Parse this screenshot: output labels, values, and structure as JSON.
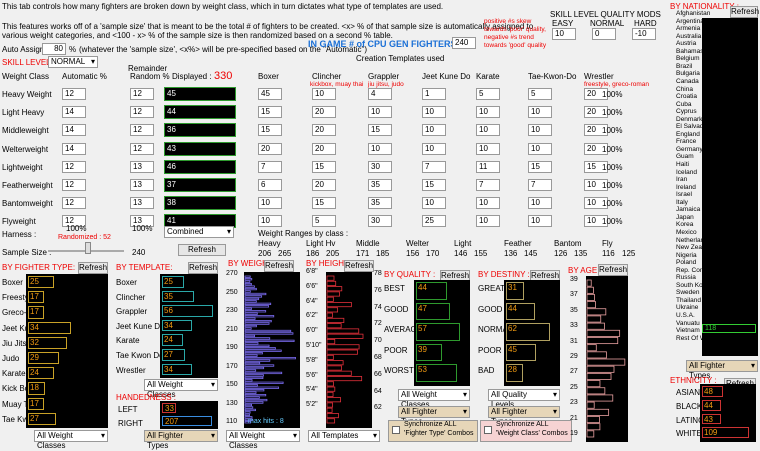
{
  "header": {
    "line1": "This tab controls how many fighters are broken down by weight class,  which in turn dictates what type of templates are used.",
    "line2": "This features works off of a 'sample size' that is meant to be the total # of fighters to be created.  <x> % of that sample size is automatically assigned to",
    "line3": "various weight categories, and <100 - x> % of the sample size is then randomized based on a second % table.",
    "auto_assign_label": "Auto Assign",
    "auto_assign_value": "80",
    "auto_assign_pct": "%",
    "auto_assign_note": "(whatever the 'sample size', <x%> will be pre-specified based on the \"Automatic\")",
    "in_game_label": "IN GAME # of CPU GEN FIGHTERS :",
    "in_game_value": "240",
    "skill_level_label": "SKILL LEVEL:",
    "skill_level_value": "NORMAL",
    "creation_templates": "Creation Templates used"
  },
  "skill_mods": {
    "title": "SKILL LEVEL QUALITY MODS",
    "easy": "EASY",
    "normal": "NORMAL",
    "hard": "HARD",
    "easy_val": "10",
    "normal_val": "0",
    "hard_val": "-10",
    "note1": "positive #s skew",
    "note2": "towards 'poor' quality,",
    "note3": "negative #s trend",
    "note4": "towards 'good' quality"
  },
  "weight_table": {
    "headers": {
      "weight_class": "Weight Class",
      "automatic": "Automatic %",
      "remainder": "Remainder",
      "random": "Random %",
      "displayed": "Displayed :",
      "displayed_val": "330",
      "boxer": "Boxer",
      "clincher": "Clincher",
      "grappler": "Grappler",
      "jkd": "Jeet Kune Do",
      "karate": "Karate",
      "tkd": "Tae-Kwon-Do",
      "wrestler": "Wrestler"
    },
    "subnotes": {
      "clincher": "kickbox, muay thai",
      "grappler": "jiu jitsu, judo",
      "wrestler": "freestyle, greco-roman"
    },
    "rows": [
      {
        "name": "Heavy Weight",
        "auto": "12",
        "rand": "12",
        "disp": "45",
        "boxer": "45",
        "clincher": "10",
        "grappler": "4",
        "jkd": "1",
        "karate": "5",
        "tkd": "5",
        "wrestler": "20",
        "wpct": "100%"
      },
      {
        "name": "Light Heavy",
        "auto": "14",
        "rand": "12",
        "disp": "44",
        "boxer": "15",
        "clincher": "20",
        "grappler": "10",
        "jkd": "10",
        "karate": "10",
        "tkd": "10",
        "wrestler": "20",
        "wpct": "100%"
      },
      {
        "name": "Middleweight",
        "auto": "14",
        "rand": "12",
        "disp": "36",
        "boxer": "15",
        "clincher": "20",
        "grappler": "15",
        "jkd": "10",
        "karate": "10",
        "tkd": "10",
        "wrestler": "20",
        "wpct": "100%"
      },
      {
        "name": "Welterweight",
        "auto": "14",
        "rand": "12",
        "disp": "43",
        "boxer": "20",
        "clincher": "20",
        "grappler": "10",
        "jkd": "10",
        "karate": "10",
        "tkd": "10",
        "wrestler": "20",
        "wpct": "100%"
      },
      {
        "name": "Lightweight",
        "auto": "12",
        "rand": "13",
        "disp": "46",
        "boxer": "7",
        "clincher": "15",
        "grappler": "30",
        "jkd": "7",
        "karate": "11",
        "tkd": "15",
        "wrestler": "15",
        "wpct": "100%"
      },
      {
        "name": "Featherweight",
        "auto": "12",
        "rand": "13",
        "disp": "37",
        "boxer": "6",
        "clincher": "20",
        "grappler": "35",
        "jkd": "15",
        "karate": "7",
        "tkd": "7",
        "wrestler": "10",
        "wpct": "100%"
      },
      {
        "name": "Bantomweight",
        "auto": "12",
        "rand": "13",
        "disp": "38",
        "boxer": "10",
        "clincher": "15",
        "grappler": "35",
        "jkd": "10",
        "karate": "10",
        "tkd": "10",
        "wrestler": "10",
        "wpct": "100%"
      },
      {
        "name": "Flyweight",
        "auto": "12",
        "rand": "13",
        "disp": "41",
        "boxer": "10",
        "clincher": "5",
        "grappler": "30",
        "jkd": "25",
        "karate": "10",
        "tkd": "10",
        "wrestler": "10",
        "wpct": "100%"
      }
    ],
    "auto_total": "100%",
    "rand_total": "100%",
    "combined": "Combined"
  },
  "harness": {
    "label": "Harness :",
    "randomized": "Randomized : 52",
    "sample_label": "Sample Size :",
    "sample_value": "240",
    "refresh": "Refresh"
  },
  "weight_ranges": {
    "title": "Weight Ranges by class :",
    "classes": [
      {
        "name": "Heavy",
        "lo": "206",
        "hi": "265"
      },
      {
        "name": "Light Hv",
        "lo": "186",
        "hi": "205"
      },
      {
        "name": "Middle",
        "lo": "171",
        "hi": "185"
      },
      {
        "name": "Welter",
        "lo": "156",
        "hi": "170"
      },
      {
        "name": "Light",
        "lo": "146",
        "hi": "155"
      },
      {
        "name": "Feather",
        "lo": "136",
        "hi": "145"
      },
      {
        "name": "Bantom",
        "lo": "126",
        "hi": "135"
      },
      {
        "name": "Fly",
        "lo": "116",
        "hi": "125"
      }
    ]
  },
  "by_fighter_type": {
    "title": "BY FIGHTER TYPE:",
    "refresh": "Refresh",
    "items": [
      {
        "label": "Boxer",
        "val": "25",
        "frac": 0.33
      },
      {
        "label": "Freestyle (Wr)",
        "val": "17",
        "frac": 0.2
      },
      {
        "label": "Greco-Roman (Wr)",
        "val": "17",
        "frac": 0.2
      },
      {
        "label": "Jeet Kune Do",
        "val": "34",
        "frac": 0.55
      },
      {
        "label": "Jiu Jitsu",
        "val": "32",
        "frac": 0.5
      },
      {
        "label": "Judo",
        "val": "29",
        "frac": 0.4
      },
      {
        "label": "Karate",
        "val": "24",
        "frac": 0.33
      },
      {
        "label": "Kick Boxer",
        "val": "18",
        "frac": 0.22
      },
      {
        "label": "Muay Thai",
        "val": "17",
        "frac": 0.2
      },
      {
        "label": "Tae Kwon Do",
        "val": "27",
        "frac": 0.36
      }
    ],
    "filter": "All Weight Classes"
  },
  "by_template": {
    "title": "BY TEMPLATE:",
    "refresh": "Refresh",
    "items": [
      {
        "label": "Boxer",
        "val": "25",
        "frac": 0.4
      },
      {
        "label": "Clincher",
        "val": "35",
        "frac": 0.6
      },
      {
        "label": "Grappler",
        "val": "56",
        "frac": 0.95
      },
      {
        "label": "Jeet Kune Do",
        "val": "34",
        "frac": 0.55
      },
      {
        "label": "Karate",
        "val": "24",
        "frac": 0.38
      },
      {
        "label": "Tae Kwon Do",
        "val": "27",
        "frac": 0.43
      },
      {
        "label": "Wrestler",
        "val": "34",
        "frac": 0.55
      }
    ],
    "filter": "All Weight Classes",
    "handedness_title": "HANDEDNESS :",
    "left_label": "LEFT",
    "left_val": "33",
    "right_label": "RIGHT",
    "right_val": "207",
    "handed_filter": "All Fighter Types"
  },
  "by_weight": {
    "title": "BY WEIGHT :",
    "refresh": "Refresh",
    "ticks": [
      "270",
      "250",
      "230",
      "210",
      "190",
      "170",
      "150",
      "130",
      "110"
    ],
    "footer": "max hits : 8",
    "filter": "All Weight Classes"
  },
  "by_height": {
    "title": "BY HEIGHT :",
    "refresh": "Refresh",
    "left_ticks": [
      "6'8\"",
      "6'6\"",
      "6'4\"",
      "6'2\"",
      "6'0\"",
      "5'10\"",
      "5'8\"",
      "5'6\"",
      "5'4\"",
      "5'2\""
    ],
    "right_ticks": [
      "78",
      "76",
      "74",
      "72",
      "70",
      "68",
      "66",
      "64",
      "62"
    ],
    "filter": "All Templates"
  },
  "by_quality": {
    "title": "BY QUALITY :",
    "refresh": "Refresh",
    "items": [
      {
        "label": "BEST",
        "val": "44",
        "frac": 0.6
      },
      {
        "label": "GOOD",
        "val": "47",
        "frac": 0.65
      },
      {
        "label": "AVERAGE",
        "val": "57",
        "frac": 0.85
      },
      {
        "label": "POOR",
        "val": "39",
        "frac": 0.5
      },
      {
        "label": "WORST",
        "val": "53",
        "frac": 0.78
      }
    ],
    "filter": "All Weight Classes",
    "filter2": "All Fighter Types",
    "sync_label1": "Synchronize ALL",
    "sync_label2": "'Fighter Type' Combos"
  },
  "by_destiny": {
    "title": "BY DESTINY :",
    "refresh": "Refresh",
    "items": [
      {
        "label": "GREAT",
        "val": "31",
        "frac": 0.35
      },
      {
        "label": "GOOD",
        "val": "44",
        "frac": 0.55
      },
      {
        "label": "NORMAL",
        "val": "62",
        "frac": 0.85
      },
      {
        "label": "POOR",
        "val": "45",
        "frac": 0.58
      },
      {
        "label": "BAD",
        "val": "28",
        "frac": 0.32
      }
    ],
    "filter": "All Quality Levels",
    "filter2": "All Fighter Types",
    "sync_label1": "Synchronize ALL",
    "sync_label2": "'Weight Class' Combos"
  },
  "by_age": {
    "title": "BY AGE :",
    "refresh": "Refresh",
    "ticks": [
      "39",
      "37",
      "35",
      "33",
      "31",
      "29",
      "27",
      "25",
      "23",
      "21",
      "19"
    ]
  },
  "by_nationality": {
    "title": "BY NATIONALITY :",
    "refresh": "Refresh",
    "items": [
      "Afghanistan",
      "Argentina",
      "Armenia",
      "Australia",
      "Austria",
      "Bahamas",
      "Belgium",
      "Brazil",
      "Bulgaria",
      "Canada",
      "China",
      "Croatia",
      "Cuba",
      "Cyprus",
      "Denmark",
      "El Salvador",
      "England",
      "France",
      "Germany",
      "Guam",
      "Haiti",
      "Iceland",
      "Iran",
      "Ireland",
      "Israel",
      "Italy",
      "Jamaica",
      "Japan",
      "Korea",
      "Mexico",
      "Netherlands",
      "New Zealand",
      "Nigeria",
      "Poland",
      "Rep. Congo",
      "Russia",
      "South Korea",
      "Sweden",
      "Thailand",
      "Ukraine",
      "U.S.A.",
      "Vanuatu",
      "Vietnam",
      "Rest Of World"
    ],
    "usa_val": "118",
    "filter": "All Fighter Types"
  },
  "ethnicity": {
    "title": "ETHNICITY :",
    "refresh": "Refresh",
    "items": [
      {
        "label": "ASIAN",
        "val": "48",
        "frac": 0.4
      },
      {
        "label": "BLACK",
        "val": "44",
        "frac": 0.37
      },
      {
        "label": "LATINO",
        "val": "43",
        "frac": 0.36
      },
      {
        "label": "WHITE",
        "val": "109",
        "frac": 0.9
      }
    ]
  }
}
